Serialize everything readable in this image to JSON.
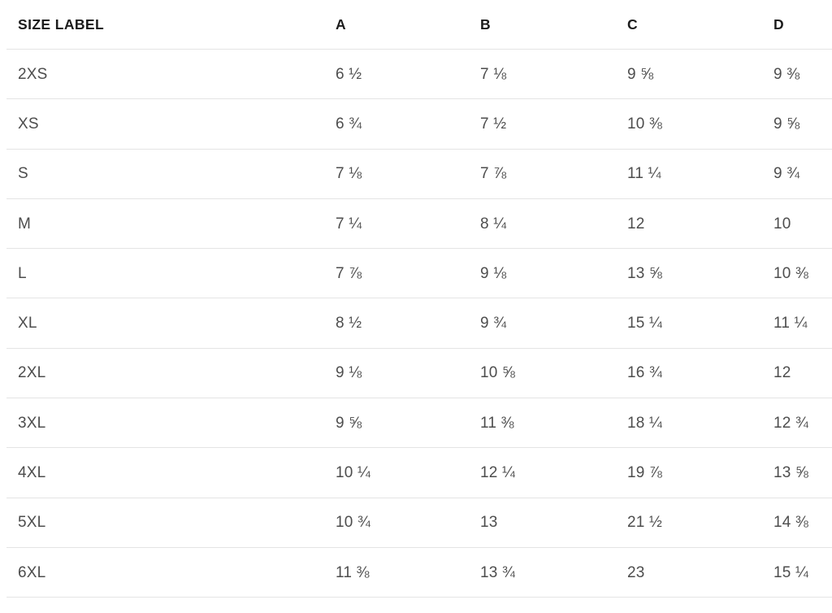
{
  "chart_data": {
    "type": "table",
    "columns": [
      "SIZE LABEL",
      "A",
      "B",
      "C",
      "D"
    ],
    "rows": [
      {
        "size": "2XS",
        "a": "6 ½",
        "b": "7 ⅛",
        "c": "9 ⅝",
        "d": "9 ⅜"
      },
      {
        "size": "XS",
        "a": "6 ¾",
        "b": "7 ½",
        "c": "10 ⅜",
        "d": "9 ⅝"
      },
      {
        "size": "S",
        "a": "7 ⅛",
        "b": "7 ⅞",
        "c": "11 ¼",
        "d": "9 ¾"
      },
      {
        "size": "M",
        "a": "7 ¼",
        "b": "8 ¼",
        "c": "12",
        "d": "10"
      },
      {
        "size": "L",
        "a": "7 ⅞",
        "b": "9 ⅛",
        "c": "13 ⅝",
        "d": "10 ⅜"
      },
      {
        "size": "XL",
        "a": "8 ½",
        "b": "9 ¾",
        "c": "15 ¼",
        "d": "11 ¼"
      },
      {
        "size": "2XL",
        "a": "9 ⅛",
        "b": "10 ⅝",
        "c": "16 ¾",
        "d": "12"
      },
      {
        "size": "3XL",
        "a": "9 ⅝",
        "b": "11 ⅜",
        "c": "18 ¼",
        "d": "12 ¾"
      },
      {
        "size": "4XL",
        "a": "10 ¼",
        "b": "12 ¼",
        "c": "19 ⅞",
        "d": "13 ⅝"
      },
      {
        "size": "5XL",
        "a": "10 ¾",
        "b": "13",
        "c": "21 ½",
        "d": "14 ⅜"
      },
      {
        "size": "6XL",
        "a": "11 ⅜",
        "b": "13 ¾",
        "c": "23",
        "d": "15 ¼"
      }
    ],
    "layout": {
      "grid": "horizontal-dividers-only",
      "legend": "none"
    },
    "colors": {
      "header_text": "#1c1c1c",
      "body_text": "#4d4d4d",
      "divider": "#e4e4e4",
      "background": "#ffffff"
    }
  }
}
